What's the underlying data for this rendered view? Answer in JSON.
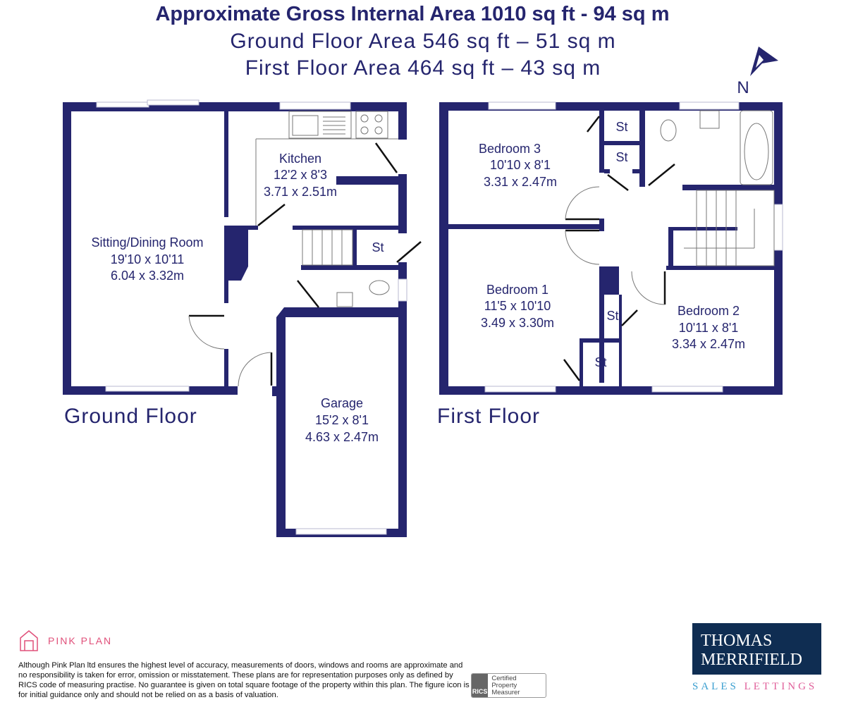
{
  "header": {
    "gross_area": "Approximate Gross Internal Area 1010 sq ft - 94 sq m",
    "ground_area": "Ground Floor Area 546 sq ft – 51 sq m",
    "first_area": "First Floor Area 464 sq ft – 43 sq m"
  },
  "compass": {
    "label": "N",
    "icon": "north-arrow-icon"
  },
  "ground_floor": {
    "label": "Ground Floor",
    "rooms": {
      "sitting": {
        "name": "Sitting/Dining Room",
        "imperial": "19'10 x 10'11",
        "metric": "6.04 x 3.32m"
      },
      "kitchen": {
        "name": "Kitchen",
        "imperial": "12'2 x 8'3",
        "metric": "3.71 x 2.51m"
      },
      "garage": {
        "name": "Garage",
        "imperial": "15'2 x 8'1",
        "metric": "4.63 x 2.47m"
      },
      "store": {
        "name": "St"
      }
    }
  },
  "first_floor": {
    "label": "First Floor",
    "rooms": {
      "bed3": {
        "name": "Bedroom 3",
        "imperial": "10'10 x 8'1",
        "metric": "3.31 x 2.47m"
      },
      "bed1": {
        "name": "Bedroom 1",
        "imperial": "11'5 x 10'10",
        "metric": "3.49 x 3.30m"
      },
      "bed2": {
        "name": "Bedroom 2",
        "imperial": "10'11 x 8'1",
        "metric": "3.34 x 2.47m"
      },
      "st1": {
        "name": "St"
      },
      "st2": {
        "name": "St"
      },
      "st3": {
        "name": "St"
      },
      "st4": {
        "name": "St"
      }
    }
  },
  "footer": {
    "brand": "PINK PLAN",
    "disclaimer": "Although Pink Plan ltd ensures the highest level of accuracy, measurements of doors, windows and rooms are approximate and no responsibility is taken for error, omission or misstatement. These plans are for representation purposes only as defined by RICS code of measuring practise. No guarantee is given on total square footage of the property within this plan. The figure icon is for initial guidance only and should not be relied on as a basis of valuation.",
    "rics_logo": "RICS",
    "rics_text": "Certified Property Measurer",
    "agent_line1": "THOMAS",
    "agent_line2": "MERRIFIELD",
    "agent_sales": "SALES",
    "agent_lettings": "LETTINGS"
  },
  "colors": {
    "wall": "#25256e",
    "pink": "#e0507a",
    "agent_bg": "#0f2d52"
  }
}
